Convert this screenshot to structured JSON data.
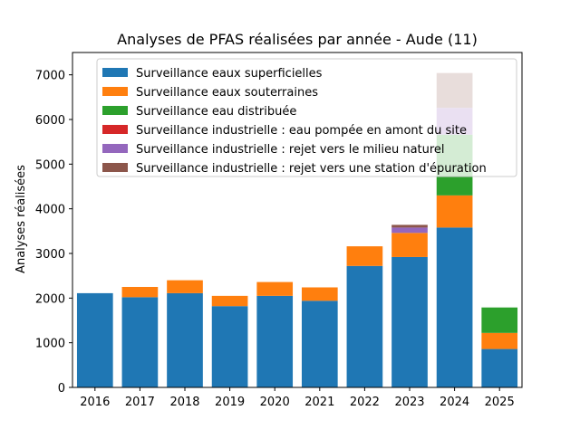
{
  "chart_data": {
    "type": "bar",
    "stacked": true,
    "title": "Analyses de PFAS réalisées par année - Aude (11)",
    "xlabel": "",
    "ylabel": "Analyses réalisées",
    "ylim": [
      0,
      7500
    ],
    "yticks": [
      0,
      1000,
      2000,
      3000,
      4000,
      5000,
      6000,
      7000
    ],
    "categories": [
      "2016",
      "2017",
      "2018",
      "2019",
      "2020",
      "2021",
      "2022",
      "2023",
      "2024",
      "2025"
    ],
    "grid": false,
    "legend_position": "top-right",
    "series": [
      {
        "name": "Surveillance eaux superficielles",
        "color": "#1f77b4",
        "values": [
          2110,
          2020,
          2110,
          1820,
          2050,
          1940,
          2720,
          2920,
          3580,
          860
        ]
      },
      {
        "name": "Surveillance eaux souterraines",
        "color": "#ff7f0e",
        "values": [
          0,
          230,
          290,
          230,
          310,
          300,
          440,
          540,
          720,
          360
        ]
      },
      {
        "name": "Surveillance eau distribuée",
        "color": "#2ca02c",
        "values": [
          0,
          0,
          0,
          0,
          0,
          0,
          0,
          0,
          1360,
          570
        ]
      },
      {
        "name": "Surveillance industrielle : eau pompée en amont du site",
        "color": "#d62728",
        "values": [
          0,
          0,
          0,
          0,
          0,
          0,
          0,
          0,
          0,
          0
        ]
      },
      {
        "name": "Surveillance industrielle : rejet vers le milieu naturel",
        "color": "#9467bd",
        "values": [
          0,
          0,
          0,
          0,
          0,
          0,
          0,
          120,
          600,
          0
        ]
      },
      {
        "name": "Surveillance industrielle : rejet vers une station d'épuration",
        "color": "#8c564b",
        "values": [
          0,
          0,
          0,
          0,
          0,
          0,
          0,
          60,
          780,
          0
        ]
      }
    ]
  }
}
